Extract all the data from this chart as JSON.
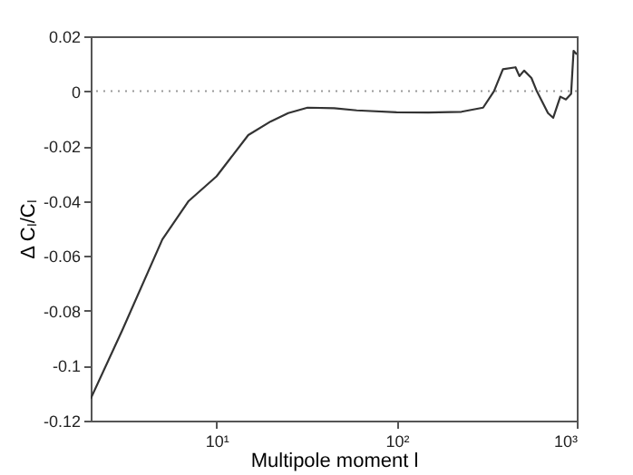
{
  "chart_data": {
    "type": "line",
    "xlabel": "Multipole moment l",
    "ylabel": "Δ Cₗ/Cₗ",
    "log": "x",
    "grid": false,
    "line_style": "solid",
    "marker": "none",
    "xlim": [
      2,
      1000
    ],
    "xticks": [
      {
        "value": 10,
        "label": "10¹"
      },
      {
        "value": 100,
        "label": "10²"
      },
      {
        "value": 1000,
        "label": "10³"
      }
    ],
    "ylim": [
      -0.12,
      0.02
    ],
    "yticks": [
      0.02,
      0,
      -0.02,
      -0.04,
      -0.06,
      -0.08,
      -0.1,
      -0.12
    ],
    "ref_lines": [
      {
        "axis": "y",
        "value": 0,
        "color": "#999999",
        "line_style": "dotted"
      }
    ],
    "series": [
      {
        "color": "#333333",
        "x": [
          2,
          3,
          5,
          7,
          10,
          15,
          20,
          25,
          32,
          45,
          60,
          100,
          150,
          229,
          302,
          347,
          389,
          457,
          480,
          510,
          560,
          600,
          692,
          740,
          810,
          870,
          930,
          960,
          1000
        ],
        "values": [
          -0.112,
          -0.087,
          -0.054,
          -0.04,
          -0.031,
          -0.016,
          -0.011,
          -0.008,
          -0.006,
          -0.0062,
          -0.007,
          -0.0077,
          -0.0078,
          -0.0075,
          -0.006,
          0,
          0.008,
          0.0087,
          0.0055,
          0.0075,
          0.0048,
          0,
          -0.008,
          -0.0097,
          -0.002,
          -0.003,
          -0.001,
          0.0147,
          0.0134
        ]
      }
    ]
  }
}
